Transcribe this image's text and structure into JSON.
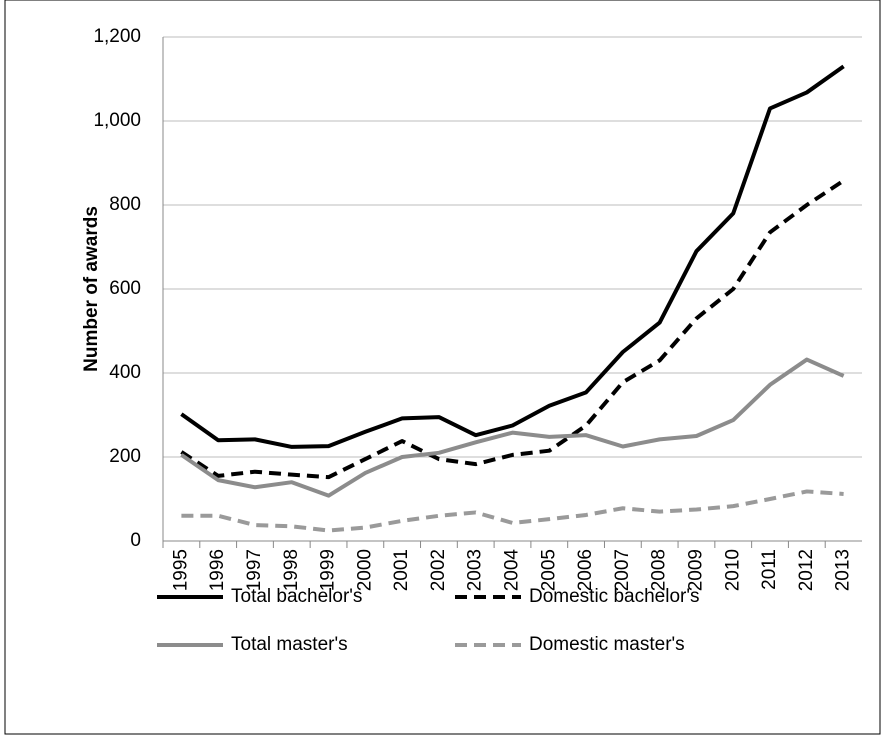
{
  "chart_data": {
    "type": "line",
    "ylabel": "Number of awards",
    "categories": [
      "1995",
      "1996",
      "1997",
      "1998",
      "1999",
      "2000",
      "2001",
      "2002",
      "2003",
      "2004",
      "2005",
      "2006",
      "2007",
      "2008",
      "2009",
      "2010",
      "2011",
      "2012",
      "2013"
    ],
    "series": [
      {
        "name": "Total bachelor's",
        "color": "#000000",
        "dash": false,
        "values": [
          302,
          240,
          242,
          224,
          226,
          260,
          292,
          295,
          252,
          275,
          322,
          354,
          450,
          520,
          690,
          780,
          1030,
          1068,
          1130
        ]
      },
      {
        "name": "Domestic bachelor's",
        "color": "#000000",
        "dash": true,
        "values": [
          212,
          155,
          165,
          158,
          152,
          195,
          238,
          195,
          183,
          205,
          215,
          275,
          378,
          430,
          530,
          600,
          735,
          800,
          858
        ]
      },
      {
        "name": "Total master's",
        "color": "#8c8c8c",
        "dash": false,
        "values": [
          205,
          145,
          128,
          140,
          108,
          162,
          200,
          210,
          235,
          258,
          248,
          252,
          225,
          242,
          250,
          288,
          372,
          432,
          393
        ]
      },
      {
        "name": "Domestic master's",
        "color": "#9a9a9a",
        "dash": true,
        "values": [
          60,
          60,
          38,
          35,
          25,
          32,
          48,
          60,
          68,
          43,
          52,
          62,
          78,
          70,
          75,
          83,
          100,
          118,
          112
        ]
      }
    ],
    "ylim": [
      0,
      1200
    ],
    "yticks": [
      0,
      200,
      400,
      600,
      800,
      {
        "value": 1000,
        "label": "1,000"
      },
      {
        "value": 1200,
        "label": "1,200"
      }
    ],
    "grid": true
  }
}
